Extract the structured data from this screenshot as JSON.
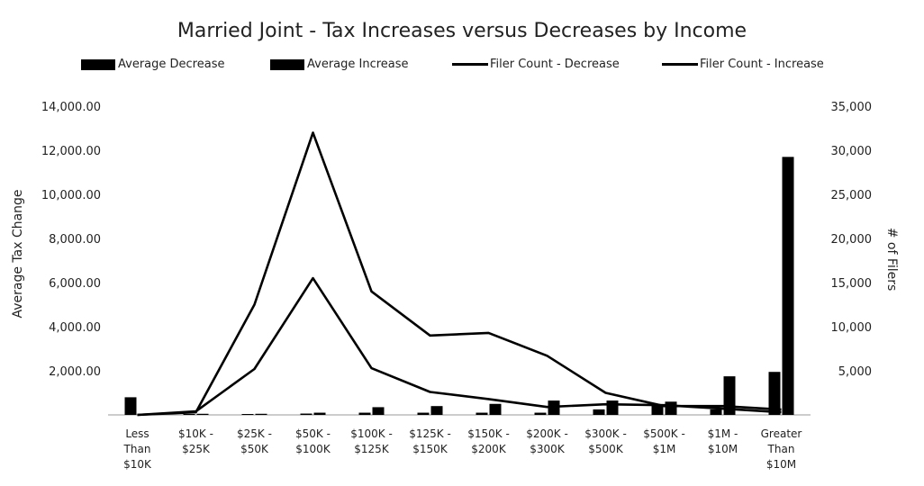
{
  "chart_data": {
    "type": "bar",
    "title": "Married Joint - Tax Increases versus Decreases by Income",
    "ylabel": "Average Tax Change",
    "y2label": "# of Filers",
    "ylim": [
      0,
      14000
    ],
    "y2lim": [
      0,
      35000
    ],
    "yticks": [
      "",
      "2,000.00",
      "4,000.00",
      "6,000.00",
      "8,000.00",
      "10,000.00",
      "12,000.00",
      "14,000.00"
    ],
    "y2ticks": [
      "",
      "5,000",
      "10,000",
      "15,000",
      "20,000",
      "25,000",
      "30,000",
      "35,000"
    ],
    "categories": [
      [
        "Less",
        "Than",
        "$10K"
      ],
      [
        "$10K -",
        "$25K"
      ],
      [
        "$25K -",
        "$50K"
      ],
      [
        "$50K -",
        "$100K"
      ],
      [
        "$100K -",
        "$125K"
      ],
      [
        "$125K -",
        "$150K"
      ],
      [
        "$150K -",
        "$200K"
      ],
      [
        "$200K -",
        "$300K"
      ],
      [
        "$300K -",
        "$500K"
      ],
      [
        "$500K -",
        "$1M"
      ],
      [
        "$1M -",
        "$10M"
      ],
      [
        "Greater",
        "Than",
        "$10M"
      ]
    ],
    "series": [
      {
        "name": "Average Decrease",
        "kind": "bar",
        "axis": "left",
        "values": [
          800,
          30,
          30,
          60,
          100,
          100,
          100,
          100,
          250,
          450,
          250,
          1950
        ]
      },
      {
        "name": "Average Increase",
        "kind": "bar",
        "axis": "left",
        "values": [
          0,
          50,
          50,
          100,
          350,
          400,
          500,
          650,
          650,
          600,
          1750,
          11700
        ]
      },
      {
        "name": "Filer Count - Decrease",
        "kind": "line",
        "axis": "right",
        "values": [
          0,
          300,
          12500,
          32000,
          14000,
          9000,
          9300,
          6700,
          2500,
          1000,
          1000,
          600
        ]
      },
      {
        "name": "Filer Count - Increase",
        "kind": "line",
        "axis": "right",
        "values": [
          0,
          400,
          5200,
          15500,
          5300,
          2600,
          1800,
          900,
          1200,
          1100,
          700,
          300
        ]
      }
    ],
    "legend_position": "top",
    "grid": false
  }
}
